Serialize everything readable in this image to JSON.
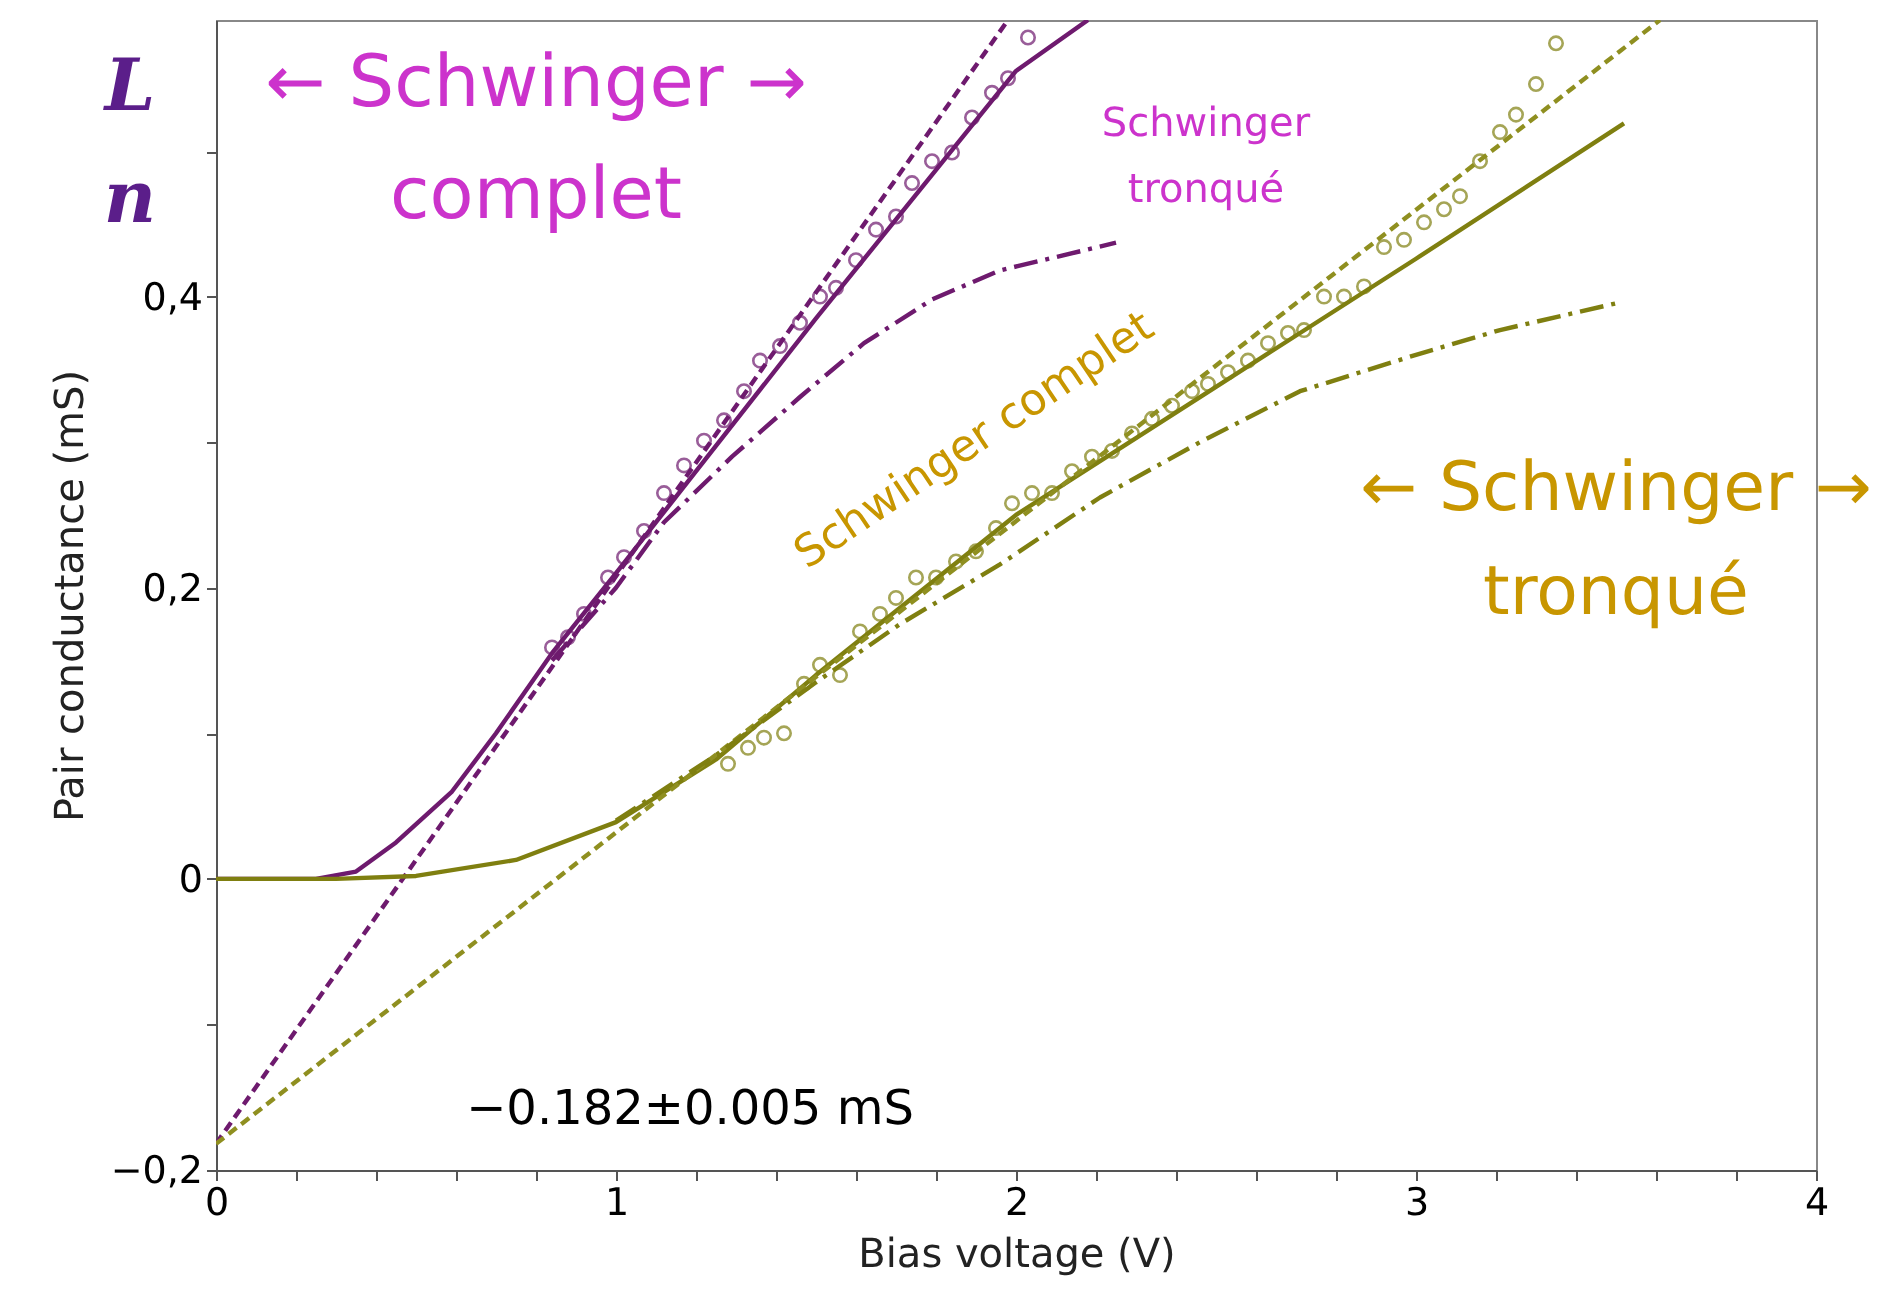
{
  "chart_data": {
    "type": "line",
    "xlabel": "Bias voltage (V)",
    "ylabel": "Pair conductance (mS)",
    "xlim": [
      0,
      4
    ],
    "ylim": [
      -0.2,
      0.59
    ],
    "xticks": [
      0,
      {
        "value": 0.2,
        "label": null
      },
      {
        "value": 0.4,
        "label": null
      },
      {
        "value": 0.6,
        "label": null
      },
      {
        "value": 0.8,
        "label": null
      },
      1,
      {
        "value": 1.2,
        "label": null
      },
      {
        "value": 1.4,
        "label": null
      },
      {
        "value": 1.6,
        "label": null
      },
      {
        "value": 1.8,
        "label": null
      },
      2,
      {
        "value": 2.2,
        "label": null
      },
      {
        "value": 2.4,
        "label": null
      },
      {
        "value": 2.6,
        "label": null
      },
      {
        "value": 2.8,
        "label": null
      },
      3,
      {
        "value": 3.2,
        "label": null
      },
      {
        "value": 3.4,
        "label": null
      },
      {
        "value": 3.6,
        "label": null
      },
      {
        "value": 3.8,
        "label": null
      },
      4
    ],
    "yticks": [
      {
        "value": -0.2,
        "label": "−0,2"
      },
      {
        "value": -0.1,
        "label": null
      },
      0,
      {
        "value": 0.1,
        "label": null
      },
      {
        "value": 0.2,
        "label": "0,2"
      },
      {
        "value": 0.3,
        "label": null
      },
      {
        "value": 0.4,
        "label": "0,4"
      },
      {
        "value": 0.5,
        "label": null
      }
    ],
    "grid": false,
    "series": [
      {
        "type": "scatter",
        "marker": "circle",
        "color": "#6e1a6e",
        "x": [
          0.84,
          0.88,
          0.92,
          0.98,
          1.02,
          1.07,
          1.12,
          1.17,
          1.22,
          1.27,
          1.32,
          1.36,
          1.41,
          1.46,
          1.51,
          1.55,
          1.6,
          1.65,
          1.7,
          1.74,
          1.79,
          1.84,
          1.89,
          1.94,
          1.98,
          2.03
        ],
        "values": [
          0.159,
          0.166,
          0.182,
          0.207,
          0.221,
          0.239,
          0.265,
          0.284,
          0.301,
          0.315,
          0.335,
          0.356,
          0.366,
          0.382,
          0.4,
          0.406,
          0.425,
          0.446,
          0.455,
          0.478,
          0.493,
          0.499,
          0.523,
          0.54,
          0.55,
          0.578
        ]
      },
      {
        "type": "scatter",
        "marker": "circle",
        "color": "#7f7f10",
        "x": [
          1.28,
          1.33,
          1.37,
          1.42,
          1.47,
          1.51,
          1.56,
          1.61,
          1.66,
          1.7,
          1.75,
          1.8,
          1.85,
          1.9,
          1.95,
          1.99,
          2.04,
          2.09,
          2.14,
          2.19,
          2.24,
          2.29,
          2.34,
          2.39,
          2.44,
          2.48,
          2.53,
          2.58,
          2.63,
          2.68,
          2.72,
          2.77,
          2.82,
          2.87,
          2.92,
          2.97,
          3.02,
          3.07,
          3.11,
          3.16,
          3.21,
          3.25,
          3.3,
          3.35
        ],
        "values": [
          0.079,
          0.09,
          0.097,
          0.1,
          0.134,
          0.147,
          0.14,
          0.17,
          0.182,
          0.193,
          0.207,
          0.207,
          0.218,
          0.225,
          0.241,
          0.258,
          0.265,
          0.265,
          0.28,
          0.29,
          0.294,
          0.306,
          0.316,
          0.325,
          0.335,
          0.34,
          0.348,
          0.356,
          0.368,
          0.375,
          0.377,
          0.4,
          0.4,
          0.407,
          0.434,
          0.439,
          0.451,
          0.46,
          0.469,
          0.493,
          0.513,
          0.525,
          0.546,
          0.574
        ]
      },
      {
        "type": "line",
        "line_style": "solid",
        "color": "#6e1a6e",
        "x": [
          0,
          0.25,
          0.35,
          0.45,
          0.59,
          0.7,
          0.84,
          1.0,
          1.5,
          2.0,
          2.18
        ],
        "values": [
          0,
          0,
          0.005,
          0.025,
          0.06,
          0.1,
          0.155,
          0.21,
          0.385,
          0.555,
          0.59
        ]
      },
      {
        "type": "line",
        "line_style": "dashed",
        "color": "#6e1a6e",
        "x": [
          0,
          1.98
        ],
        "values": [
          -0.182,
          0.59
        ]
      },
      {
        "type": "line",
        "line_style": "dashdot",
        "color": "#6e1a6e",
        "x": [
          0.84,
          1.0,
          1.12,
          1.29,
          1.46,
          1.62,
          1.79,
          1.96,
          2.25
        ],
        "values": [
          0.15,
          0.2,
          0.245,
          0.29,
          0.331,
          0.368,
          0.398,
          0.418,
          0.437
        ]
      },
      {
        "type": "line",
        "line_style": "solid",
        "color": "#7f7f10",
        "x": [
          0,
          0.3,
          0.5,
          0.75,
          1.0,
          1.25,
          1.5,
          2.0,
          2.5,
          3.0,
          3.52
        ],
        "values": [
          0,
          0,
          0.002,
          0.013,
          0.039,
          0.082,
          0.14,
          0.25,
          0.338,
          0.426,
          0.519
        ]
      },
      {
        "type": "line",
        "line_style": "dashed",
        "color": "#8f8f20",
        "x": [
          0,
          3.61
        ],
        "values": [
          -0.182,
          0.59
        ]
      },
      {
        "type": "line",
        "line_style": "dashdot",
        "color": "#7f7f10",
        "x": [
          1.0,
          1.25,
          1.5,
          1.71,
          1.96,
          2.21,
          2.46,
          2.71,
          3.0,
          3.21,
          3.51
        ],
        "values": [
          0.04,
          0.085,
          0.135,
          0.175,
          0.216,
          0.262,
          0.3,
          0.335,
          0.36,
          0.377,
          0.396
        ]
      }
    ],
    "annotations": [
      "L\nn",
      "← Schwinger →\ncomplet",
      "Schwinger\ntronqué",
      "Schwinger complet",
      "← Schwinger →\ntronqué",
      "−0.182±0.005 mS"
    ]
  }
}
